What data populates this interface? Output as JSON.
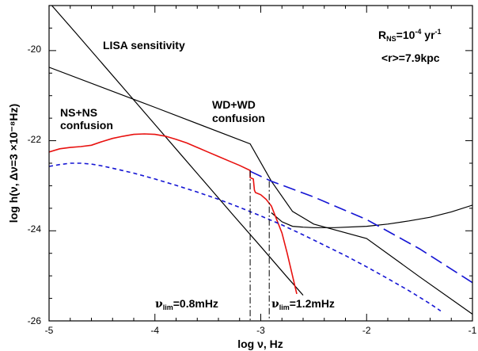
{
  "chart_data": {
    "type": "line",
    "xlim": [
      -5,
      -1
    ],
    "ylim": [
      -26,
      -19
    ],
    "x_ticks": [
      "-5",
      "-4",
      "-3",
      "-2",
      "-1"
    ],
    "y_ticks": [
      "-20",
      "-22",
      "-24",
      "-26"
    ],
    "x_tick_values": [
      -5,
      -4,
      -3,
      -2,
      -1
    ],
    "y_tick_values": [
      -20,
      -22,
      -24,
      -26
    ],
    "grid": false,
    "xlabel": "log ν, Hz",
    "ylabel": "log h(ν, Δν=3 ×10⁻⁸Hz)",
    "annotations": {
      "lisa": "LISA sensitivity",
      "wdwd_line1": "WD+WD",
      "wdwd_line2": "confusion",
      "nsns_line1": "NS+NS",
      "nsns_line2": "confusion",
      "rate": "R_NS=10⁻⁴ yr⁻¹",
      "rate_base": "R",
      "rate_sub": "NS",
      "rate_eq": "=10",
      "rate_exp": "-4",
      "rate_unit": " yr",
      "rate_unit_exp": "-1",
      "distance": "<r>=7.9kpc",
      "nu1": "ν_lim=0.8mHz",
      "nu1_sym": "ν",
      "nu1_sub": "lim",
      "nu1_val": "=0.8mHz",
      "nu2": "ν_lim=1.2mHz",
      "nu2_sym": "ν",
      "nu2_sub": "lim",
      "nu2_val": "=1.2mHz"
    },
    "colors": {
      "black": "#000000",
      "red": "#e8110f",
      "blue": "#1515d4"
    },
    "series": [
      {
        "color": "black",
        "style": "solid",
        "x": [
          -5.0,
          -4.75,
          -4.5,
          -4.25,
          -4.0,
          -3.75,
          -3.5,
          -3.25,
          -3.0,
          -2.75,
          -2.6
        ],
        "y": [
          -18.93,
          -19.6,
          -20.28,
          -20.96,
          -21.64,
          -22.32,
          -23.0,
          -23.68,
          -24.35,
          -25.03,
          -25.43
        ]
      },
      {
        "color": "black",
        "style": "solid",
        "x": [
          -5.0,
          -4.0,
          -3.1,
          -2.9,
          -2.7,
          -2.5,
          -2.0,
          -1.5,
          -1.0
        ],
        "y": [
          -20.37,
          -21.26,
          -22.07,
          -22.9,
          -23.57,
          -23.85,
          -24.17,
          -25.02,
          -25.85
        ]
      },
      {
        "color": "black",
        "style": "solid",
        "x": [
          -2.9,
          -2.8,
          -2.7,
          -2.6,
          -2.5,
          -2.3,
          -2.0,
          -1.8,
          -1.6,
          -1.4,
          -1.2,
          -1.0
        ],
        "y": [
          -23.6,
          -23.8,
          -23.9,
          -23.92,
          -23.93,
          -23.93,
          -23.9,
          -23.85,
          -23.78,
          -23.7,
          -23.58,
          -23.43
        ]
      },
      {
        "color": "red",
        "style": "solid",
        "x": [
          -5.0,
          -4.9,
          -4.8,
          -4.7,
          -4.6,
          -4.5,
          -4.4,
          -4.3,
          -4.2,
          -4.1,
          -4.0,
          -3.9,
          -3.8,
          -3.7,
          -3.6,
          -3.5,
          -3.4,
          -3.3,
          -3.2,
          -3.1,
          -3.1,
          -3.07,
          -3.06,
          -3.05,
          -3.0,
          -2.95,
          -2.9,
          -2.85,
          -2.8,
          -2.75,
          -2.7,
          -2.66
        ],
        "y": [
          -22.25,
          -22.18,
          -22.15,
          -22.13,
          -22.1,
          -22.02,
          -21.95,
          -21.9,
          -21.86,
          -21.85,
          -21.86,
          -21.9,
          -21.97,
          -22.05,
          -22.15,
          -22.25,
          -22.35,
          -22.45,
          -22.55,
          -22.66,
          -22.82,
          -22.85,
          -23.1,
          -23.15,
          -23.2,
          -23.3,
          -23.45,
          -23.75,
          -24.05,
          -24.5,
          -25.0,
          -25.4
        ]
      },
      {
        "color": "blue",
        "style": "long-dash",
        "x": [
          -3.1,
          -2.9,
          -2.5,
          -2.0,
          -1.5,
          -1.0
        ],
        "y": [
          -22.68,
          -22.9,
          -23.25,
          -23.75,
          -24.4,
          -25.15
        ]
      },
      {
        "color": "blue",
        "style": "short-dash",
        "x": [
          -5.0,
          -4.9,
          -4.8,
          -4.7,
          -4.6,
          -4.5,
          -4.4,
          -4.2,
          -4.0,
          -3.8,
          -3.6,
          -3.4,
          -3.2,
          -3.0,
          -2.8,
          -2.6,
          -2.4,
          -2.2,
          -2.0,
          -1.8,
          -1.6,
          -1.4,
          -1.3
        ],
        "y": [
          -22.57,
          -22.53,
          -22.5,
          -22.5,
          -22.52,
          -22.56,
          -22.61,
          -22.72,
          -22.85,
          -22.99,
          -23.14,
          -23.3,
          -23.48,
          -23.67,
          -23.87,
          -24.09,
          -24.32,
          -24.55,
          -24.8,
          -25.06,
          -25.33,
          -25.62,
          -25.78
        ]
      },
      {
        "color": "black",
        "style": "dash-dot",
        "x": [
          -3.1,
          -3.1
        ],
        "y": [
          -22.66,
          -26.0
        ]
      },
      {
        "color": "black",
        "style": "dash-dot",
        "x": [
          -2.92,
          -2.92
        ],
        "y": [
          -22.9,
          -26.0
        ]
      }
    ]
  }
}
